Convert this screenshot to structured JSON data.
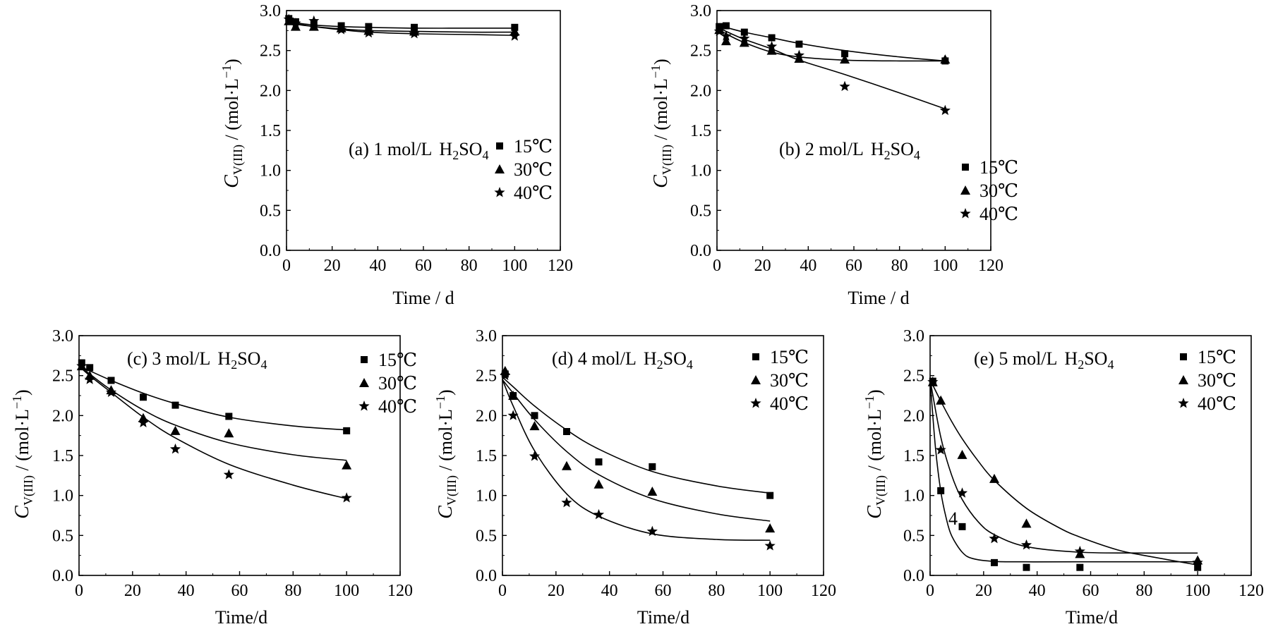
{
  "figure": {
    "panels": [
      {
        "key": "a",
        "annotation": {
          "label": "(a) 1 mol/L",
          "acid_main": "H",
          "acid_sub1": "2",
          "acid_mid": "SO",
          "acid_sub2": "4"
        },
        "xlabel": "Time / d",
        "ylabel": {
          "main": "C",
          "sub": "V(III)",
          "unit": " / (mol·L",
          "sup": "−1",
          "close": ")"
        }
      },
      {
        "key": "b",
        "annotation": {
          "label": "(b) 2 mol/L",
          "acid_main": "H",
          "acid_sub1": "2",
          "acid_mid": "SO",
          "acid_sub2": "4"
        },
        "xlabel": "Time / d",
        "ylabel": {
          "main": "C",
          "sub": "V(III)",
          "unit": " / (mol·L",
          "sup": "−1",
          "close": ")"
        }
      },
      {
        "key": "c",
        "annotation": {
          "label": "(c) 3 mol/L",
          "acid_main": "H",
          "acid_sub1": "2",
          "acid_mid": "SO",
          "acid_sub2": "4"
        },
        "xlabel": "Time/d",
        "ylabel": {
          "main": "C",
          "sub": "V(III)",
          "unit": " / (mol·L",
          "sup": "−1",
          "close": ")"
        }
      },
      {
        "key": "d",
        "annotation": {
          "label": "(d) 4 mol/L",
          "acid_main": "H",
          "acid_sub1": "2",
          "acid_mid": "SO",
          "acid_sub2": "4"
        },
        "xlabel": "Time/d",
        "ylabel": {
          "main": "C",
          "sub": "V(III)",
          "unit": " / (mol·L",
          "sup": "−1",
          "close": ")"
        }
      },
      {
        "key": "e",
        "annotation": {
          "label": "(e) 5 mol/L",
          "acid_main": "H",
          "acid_sub1": "2",
          "acid_mid": "SO",
          "acid_sub2": "4"
        },
        "xlabel": "Time/d",
        "ylabel": {
          "main": "C",
          "sub": "V(III)",
          "unit": " / (mol·L",
          "sup": "−1",
          "close": ")"
        },
        "extra_text": "4"
      }
    ]
  },
  "chart_data": [
    {
      "type": "scatter",
      "panel": "a",
      "xlim": [
        0,
        120
      ],
      "ylim": [
        0,
        3.0
      ],
      "xticks": [
        0,
        20,
        40,
        60,
        80,
        100,
        120
      ],
      "yticks": [
        0.0,
        0.5,
        1.0,
        1.5,
        2.0,
        2.5,
        3.0
      ],
      "legend_position": "middle-right",
      "series": [
        {
          "name": "15℃",
          "marker": "square",
          "x": [
            1,
            4,
            12,
            24,
            36,
            56,
            100
          ],
          "y": [
            2.9,
            2.86,
            2.83,
            2.81,
            2.8,
            2.79,
            2.79
          ],
          "fit": {
            "x": [
              0,
              4,
              12,
              24,
              36,
              56,
              80,
              100
            ],
            "y": [
              2.89,
              2.85,
              2.82,
              2.8,
              2.79,
              2.78,
              2.78,
              2.78
            ]
          }
        },
        {
          "name": "30℃",
          "marker": "triangle",
          "x": [
            1,
            4,
            12,
            24,
            36,
            56,
            100
          ],
          "y": [
            2.87,
            2.8,
            2.8,
            2.78,
            2.75,
            2.74,
            2.74
          ],
          "fit": {
            "x": [
              0,
              4,
              12,
              24,
              36,
              56,
              80,
              100
            ],
            "y": [
              2.86,
              2.83,
              2.8,
              2.77,
              2.75,
              2.74,
              2.73,
              2.73
            ]
          }
        },
        {
          "name": "40℃",
          "marker": "star",
          "x": [
            1,
            4,
            12,
            24,
            36,
            56,
            100
          ],
          "y": [
            2.89,
            2.84,
            2.87,
            2.76,
            2.72,
            2.71,
            2.68
          ],
          "fit": {
            "x": [
              0,
              4,
              12,
              24,
              36,
              56,
              80,
              100
            ],
            "y": [
              2.88,
              2.84,
              2.8,
              2.76,
              2.73,
              2.71,
              2.7,
              2.69
            ]
          }
        }
      ]
    },
    {
      "type": "scatter",
      "panel": "b",
      "xlim": [
        0,
        120
      ],
      "ylim": [
        0,
        3.0
      ],
      "xticks": [
        0,
        20,
        40,
        60,
        80,
        100,
        120
      ],
      "yticks": [
        0.0,
        0.5,
        1.0,
        1.5,
        2.0,
        2.5,
        3.0
      ],
      "legend_position": "middle-right",
      "series": [
        {
          "name": "15℃",
          "marker": "square",
          "x": [
            1,
            4,
            12,
            24,
            36,
            56,
            100
          ],
          "y": [
            2.8,
            2.81,
            2.73,
            2.66,
            2.58,
            2.46,
            2.37
          ],
          "fit": {
            "x": [
              0,
              4,
              12,
              24,
              36,
              56,
              80,
              100
            ],
            "y": [
              2.83,
              2.79,
              2.73,
              2.66,
              2.59,
              2.5,
              2.42,
              2.37
            ]
          }
        },
        {
          "name": "30℃",
          "marker": "triangle",
          "x": [
            1,
            4,
            12,
            24,
            36,
            56,
            100
          ],
          "y": [
            2.76,
            2.62,
            2.6,
            2.5,
            2.4,
            2.39,
            2.39
          ],
          "fit": {
            "x": [
              0,
              4,
              12,
              24,
              36,
              56,
              80,
              100
            ],
            "y": [
              2.79,
              2.71,
              2.6,
              2.48,
              2.42,
              2.38,
              2.37,
              2.37
            ]
          }
        },
        {
          "name": "40℃",
          "marker": "star",
          "x": [
            1,
            4,
            12,
            24,
            36,
            56,
            100
          ],
          "y": [
            2.74,
            2.68,
            2.65,
            2.55,
            2.44,
            2.05,
            1.75
          ],
          "fit": {
            "x": [
              0,
              4,
              12,
              24,
              36,
              56,
              80,
              100
            ],
            "y": [
              2.8,
              2.74,
              2.64,
              2.52,
              2.38,
              2.2,
              1.97,
              1.77
            ]
          }
        }
      ]
    },
    {
      "type": "scatter",
      "panel": "c",
      "xlim": [
        0,
        120
      ],
      "ylim": [
        0,
        3.0
      ],
      "xticks": [
        0,
        20,
        40,
        60,
        80,
        100,
        120
      ],
      "yticks": [
        0.0,
        0.5,
        1.0,
        1.5,
        2.0,
        2.5,
        3.0
      ],
      "legend_position": "top-right",
      "series": [
        {
          "name": "15℃",
          "marker": "square",
          "x": [
            1,
            4,
            12,
            24,
            36,
            56,
            100
          ],
          "y": [
            2.66,
            2.6,
            2.44,
            2.23,
            2.13,
            1.99,
            1.81
          ],
          "fit": {
            "x": [
              0,
              4,
              12,
              24,
              36,
              56,
              80,
              100
            ],
            "y": [
              2.62,
              2.56,
              2.44,
              2.28,
              2.15,
              1.98,
              1.87,
              1.82
            ]
          }
        },
        {
          "name": "30℃",
          "marker": "triangle",
          "x": [
            1,
            4,
            12,
            24,
            36,
            56,
            100
          ],
          "y": [
            2.62,
            2.5,
            2.32,
            1.97,
            1.81,
            1.78,
            1.38
          ],
          "fit": {
            "x": [
              0,
              4,
              12,
              24,
              36,
              56,
              80,
              100
            ],
            "y": [
              2.62,
              2.52,
              2.32,
              2.07,
              1.88,
              1.66,
              1.51,
              1.44
            ]
          }
        },
        {
          "name": "40℃",
          "marker": "star",
          "x": [
            1,
            4,
            12,
            24,
            36,
            56,
            100
          ],
          "y": [
            2.62,
            2.45,
            2.29,
            1.91,
            1.58,
            1.26,
            0.97
          ],
          "fit": {
            "x": [
              0,
              4,
              12,
              24,
              36,
              56,
              80,
              100
            ],
            "y": [
              2.62,
              2.5,
              2.29,
              1.98,
              1.72,
              1.39,
              1.13,
              0.96
            ]
          }
        }
      ]
    },
    {
      "type": "scatter",
      "panel": "d",
      "xlim": [
        0,
        120
      ],
      "ylim": [
        0,
        3.0
      ],
      "xticks": [
        0,
        20,
        40,
        60,
        80,
        100,
        120
      ],
      "yticks": [
        0.0,
        0.5,
        1.0,
        1.5,
        2.0,
        2.5,
        3.0
      ],
      "legend_position": "top-right",
      "series": [
        {
          "name": "15℃",
          "marker": "square",
          "x": [
            1,
            4,
            12,
            24,
            36,
            56,
            100
          ],
          "y": [
            2.52,
            2.25,
            2.0,
            1.8,
            1.42,
            1.36,
            1.0
          ],
          "fit": {
            "x": [
              0,
              4,
              12,
              24,
              36,
              56,
              80,
              100
            ],
            "y": [
              2.48,
              2.36,
              2.12,
              1.82,
              1.58,
              1.3,
              1.12,
              1.03
            ]
          }
        },
        {
          "name": "30℃",
          "marker": "triangle",
          "x": [
            1,
            4,
            12,
            24,
            36,
            56,
            100
          ],
          "y": [
            2.56,
            2.25,
            1.87,
            1.37,
            1.14,
            1.05,
            0.59
          ],
          "fit": {
            "x": [
              0,
              4,
              12,
              24,
              36,
              56,
              80,
              100
            ],
            "y": [
              2.45,
              2.28,
              1.95,
              1.55,
              1.26,
              0.96,
              0.77,
              0.68
            ]
          }
        },
        {
          "name": "40℃",
          "marker": "star",
          "x": [
            1,
            4,
            12,
            24,
            36,
            56,
            100
          ],
          "y": [
            2.5,
            2.0,
            1.49,
            0.91,
            0.76,
            0.55,
            0.37
          ],
          "fit": {
            "x": [
              0,
              4,
              12,
              24,
              36,
              56,
              80,
              100
            ],
            "y": [
              2.45,
              2.12,
              1.56,
              1.02,
              0.74,
              0.52,
              0.45,
              0.44
            ]
          }
        }
      ]
    },
    {
      "type": "scatter",
      "panel": "e",
      "xlim": [
        0,
        120
      ],
      "ylim": [
        0,
        3.0
      ],
      "xticks": [
        0,
        20,
        40,
        60,
        80,
        100,
        120
      ],
      "yticks": [
        0.0,
        0.5,
        1.0,
        1.5,
        2.0,
        2.5,
        3.0
      ],
      "legend_position": "top-right",
      "series": [
        {
          "name": "15℃",
          "marker": "square",
          "x": [
            1,
            4,
            12,
            24,
            36,
            56,
            100
          ],
          "y": [
            2.43,
            1.06,
            0.61,
            0.16,
            0.1,
            0.1,
            0.1
          ],
          "fit": {
            "x": [
              0,
              2,
              4,
              6,
              8,
              12,
              16,
              24,
              36,
              56,
              100
            ],
            "y": [
              2.45,
              1.6,
              1.05,
              0.72,
              0.5,
              0.29,
              0.21,
              0.175,
              0.17,
              0.17,
              0.17
            ]
          }
        },
        {
          "name": "30℃",
          "marker": "triangle",
          "x": [
            1,
            4,
            12,
            24,
            36,
            56,
            100
          ],
          "y": [
            2.42,
            2.19,
            1.51,
            1.21,
            0.65,
            0.27,
            0.19
          ],
          "fit": {
            "x": [
              0,
              4,
              8,
              12,
              18,
              24,
              36,
              48,
              56,
              70,
              80,
              100
            ],
            "y": [
              2.45,
              2.18,
              1.93,
              1.71,
              1.43,
              1.19,
              0.84,
              0.6,
              0.48,
              0.32,
              0.25,
              0.13
            ]
          }
        },
        {
          "name": "40℃",
          "marker": "star",
          "x": [
            1,
            4,
            12,
            24,
            36,
            56,
            100
          ],
          "y": [
            2.42,
            1.57,
            1.03,
            0.46,
            0.38,
            0.3,
            0.16
          ],
          "fit": {
            "x": [
              0,
              4,
              8,
              12,
              18,
              24,
              36,
              56,
              80,
              100
            ],
            "y": [
              2.45,
              1.73,
              1.26,
              0.95,
              0.67,
              0.51,
              0.36,
              0.29,
              0.28,
              0.28
            ]
          }
        }
      ]
    }
  ]
}
